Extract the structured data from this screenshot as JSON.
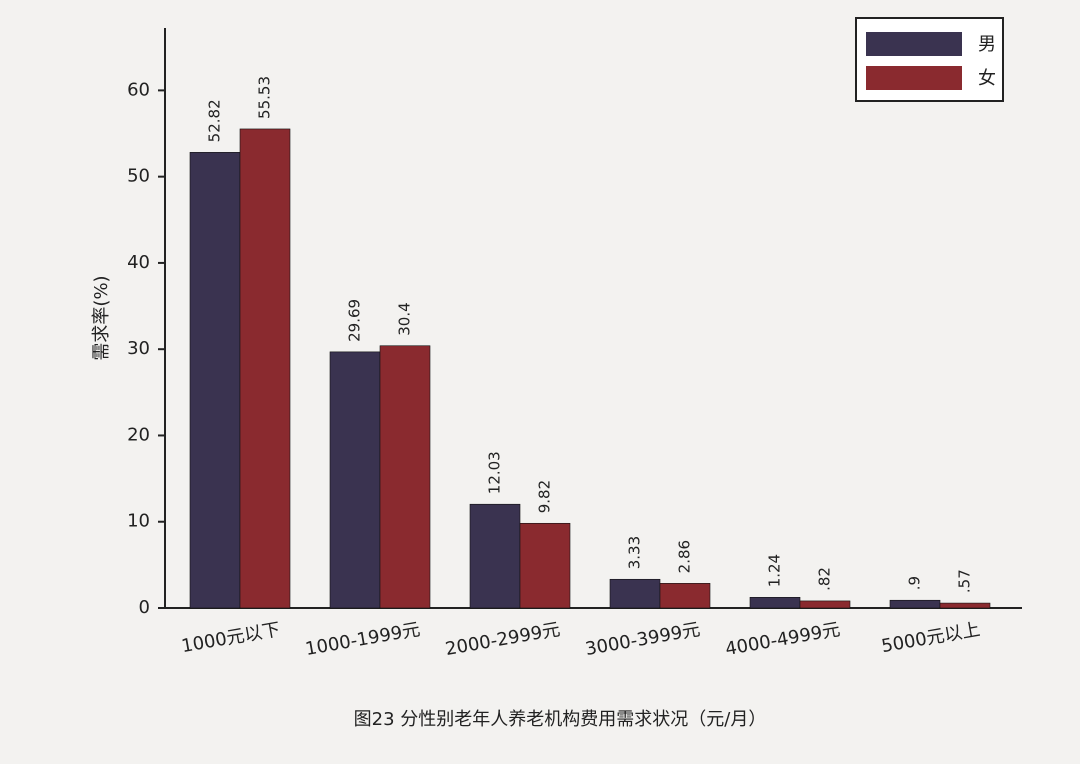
{
  "chart_data": {
    "type": "bar",
    "title": "图23 分性别老年人养老机构费用需求状况（元/月）",
    "y_label": "需求率(%)",
    "categories": [
      "1000元以下",
      "1000-1999元",
      "2000-2999元",
      "3000-3999元",
      "4000-4999元",
      "5000元以上"
    ],
    "series": [
      {
        "name": "男",
        "color": "#3a3350",
        "values": [
          52.82,
          29.69,
          12.03,
          3.33,
          1.24,
          0.9
        ],
        "value_labels": [
          "52.82",
          "29.69",
          "12.03",
          "3.33",
          "1.24",
          ".9"
        ]
      },
      {
        "name": "女",
        "color": "#8a2a2f",
        "values": [
          55.53,
          30.4,
          9.82,
          2.86,
          0.82,
          0.57
        ],
        "value_labels": [
          "55.53",
          "30.4",
          "9.82",
          "2.86",
          ".82",
          ".57"
        ]
      }
    ],
    "ylim": [
      0,
      67
    ],
    "yticks": [
      0,
      10,
      20,
      30,
      40,
      50,
      60
    ],
    "legend": "top-right"
  }
}
